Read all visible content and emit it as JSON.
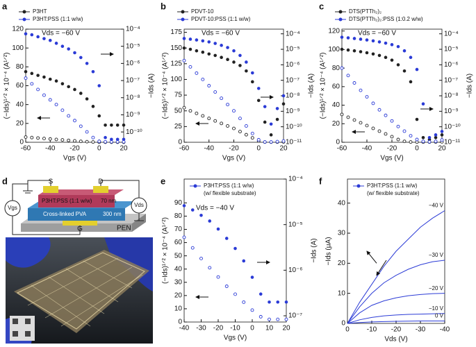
{
  "panel_labels": [
    "a",
    "b",
    "c",
    "d",
    "e",
    "f"
  ],
  "panel_d": {
    "source": "S",
    "drain": "D",
    "semiconductor": "P3HT:PSS (1:1 w/w)",
    "semiconductor_thickness": "70 nm",
    "dielectric": "Cross-linked PVA",
    "dielectric_thickness": "300 nm",
    "gate": "G",
    "substrate": "PEN",
    "vgs": "Vgs",
    "vds": "Vds"
  },
  "chart_data": [
    {
      "type": "transfer",
      "annotation": "Vds = −60 V",
      "xlabel": "Vgs (V)",
      "ylabel": "(−Ids)¹ᐟ² × 10⁻⁴ (A¹ᐟ²)",
      "y2label": "−Ids (A)",
      "y2log": true,
      "x": [
        -60,
        -55,
        -50,
        -45,
        -40,
        -35,
        -30,
        -25,
        -20,
        -15,
        -10,
        -5,
        0,
        5,
        10,
        15,
        20
      ],
      "xlim": [
        -60,
        20
      ],
      "xticks": [
        -60,
        -40,
        -20,
        0,
        20
      ],
      "ylim": [
        0,
        120
      ],
      "yticks": [
        0,
        20,
        40,
        60,
        80,
        100,
        120
      ],
      "y2lim": [
        2.5e-11,
        0.0001
      ],
      "y2ticks": [
        {
          "value": 0.0001,
          "label": "10⁻⁴"
        },
        {
          "value": 1e-05,
          "label": "10⁻⁵"
        },
        {
          "value": 1e-06,
          "label": "10⁻⁶"
        },
        {
          "value": 1e-07,
          "label": "10⁻⁷"
        },
        {
          "value": 1e-08,
          "label": "10⁻⁸"
        },
        {
          "value": 1e-09,
          "label": "10⁻⁹"
        },
        {
          "value": 1e-10,
          "label": "10⁻¹⁰"
        }
      ],
      "series": [
        {
          "name": "P3HT",
          "color": "#222222",
          "values": [
            5.5,
            5,
            4.5,
            4,
            3.5,
            3,
            2.5,
            2,
            1.5,
            1,
            0.6,
            0.3,
            0.1,
            0.1,
            0.1,
            0.1,
            0.1
          ],
          "values_y2": [
            3.3e-07,
            2.6e-07,
            2e-07,
            1.6e-07,
            1.2e-07,
            9.4e-08,
            6.5e-08,
            4.4e-08,
            3e-08,
            1.8e-08,
            8.5e-09,
            3.1e-09,
            8.7e-10,
            2.5e-10,
            2.5e-10,
            2.5e-10,
            2.5e-10
          ]
        },
        {
          "name": "P3HT:PSS (1:1 w/w)",
          "color": "#2b3bd6",
          "values": [
            68,
            62,
            56,
            50,
            45,
            40,
            34,
            28,
            23,
            17,
            11,
            5,
            1,
            0.5,
            0.5,
            0.5,
            0.5
          ],
          "values_y2": [
            5.3e-05,
            4.7e-05,
            3.6e-05,
            2.8e-05,
            2.2e-05,
            1.5e-05,
            1e-05,
            7e-06,
            4.2e-06,
            2.2e-06,
            1e-06,
            3.3e-07,
            5e-08,
            4.7e-11,
            3.7e-11,
            3.7e-11,
            3.7e-11
          ]
        }
      ]
    },
    {
      "type": "transfer",
      "annotation": "Vds = −60 V",
      "xlabel": "Vgs (V)",
      "ylabel": "(−Ids)¹ᐟ² × 10⁻⁴ (A¹ᐟ²)",
      "y2label": "−Ids (A)",
      "y2log": true,
      "x": [
        -60,
        -55,
        -50,
        -45,
        -40,
        -35,
        -30,
        -25,
        -20,
        -15,
        -10,
        -5,
        0,
        5,
        10,
        15,
        20
      ],
      "xlim": [
        -60,
        20
      ],
      "xticks": [
        -60,
        -40,
        -20,
        0,
        20
      ],
      "ylim": [
        0,
        180
      ],
      "yticks": [
        0,
        25,
        50,
        75,
        100,
        125,
        150,
        175
      ],
      "y2lim": [
        1e-11,
        0.0002
      ],
      "y2ticks": [
        {
          "value": 0.0001,
          "label": "10⁻⁴"
        },
        {
          "value": 1e-05,
          "label": "10⁻⁵"
        },
        {
          "value": 1e-06,
          "label": "10⁻⁶"
        },
        {
          "value": 1e-07,
          "label": "10⁻⁷"
        },
        {
          "value": 1e-08,
          "label": "10⁻⁸"
        },
        {
          "value": 1e-09,
          "label": "10⁻⁹"
        },
        {
          "value": 1e-10,
          "label": "10⁻¹⁰"
        },
        {
          "value": 1e-11,
          "label": "10⁻¹¹"
        }
      ],
      "series": [
        {
          "name": "PDVT-10",
          "color": "#222222",
          "values": [
            55,
            50,
            46,
            42,
            38,
            34,
            30,
            26,
            22,
            17,
            12,
            7,
            2,
            0.3,
            0.2,
            0.3,
            0.5
          ],
          "values_y2": [
            1.2e-05,
            1e-05,
            8e-06,
            6.5e-06,
            5e-06,
            4e-06,
            3e-06,
            2.2e-06,
            1.5e-06,
            9e-07,
            4e-07,
            8e-08,
            5e-09,
            2e-10,
            3e-11,
            3e-10,
            3e-09
          ]
        },
        {
          "name": "PDVT-10:PSS (1:1 w/w)",
          "color": "#2b3bd6",
          "values": [
            130,
            120,
            110,
            100,
            90,
            80,
            70,
            60,
            50,
            38,
            26,
            14,
            4,
            0.5,
            0.5,
            1,
            2
          ],
          "values_y2": [
            5e-05,
            4.5e-05,
            4e-05,
            3.5e-05,
            3e-05,
            2.4e-05,
            1.8e-05,
            1.3e-05,
            8e-06,
            4e-06,
            1.5e-06,
            3e-07,
            3e-08,
            2e-09,
            1.5e-10,
            1.5e-09,
            1e-08
          ]
        }
      ]
    },
    {
      "type": "transfer",
      "annotation": "Vds = −60 V",
      "xlabel": "Vgs (V)",
      "ylabel": "(−Ids)¹ᐟ² × 10⁻⁴ (A¹ᐟ²)",
      "y2label": "−Ids (A)",
      "y2log": true,
      "x": [
        -60,
        -55,
        -50,
        -45,
        -40,
        -35,
        -30,
        -25,
        -20,
        -15,
        -10,
        -5,
        0,
        5,
        10,
        15,
        20
      ],
      "xlim": [
        -60,
        20
      ],
      "xticks": [
        -60,
        -40,
        -20,
        0,
        20
      ],
      "ylim": [
        0,
        122
      ],
      "yticks": [
        0,
        20,
        40,
        60,
        80,
        100,
        120
      ],
      "y2lim": [
        1e-11,
        0.0002
      ],
      "y2ticks": [
        {
          "value": 0.0001,
          "label": "10⁻⁴"
        },
        {
          "value": 1e-05,
          "label": "10⁻⁵"
        },
        {
          "value": 1e-06,
          "label": "10⁻⁶"
        },
        {
          "value": 1e-07,
          "label": "10⁻⁷"
        },
        {
          "value": 1e-08,
          "label": "10⁻⁸"
        },
        {
          "value": 1e-09,
          "label": "10⁻⁹"
        },
        {
          "value": 1e-10,
          "label": "10⁻¹⁰"
        },
        {
          "value": 1e-11,
          "label": "10⁻¹¹"
        }
      ],
      "series": [
        {
          "name": "DTS(PTTh₂)₂",
          "color": "#222222",
          "values": [
            30,
            27,
            24,
            21,
            18,
            15,
            12,
            9,
            6,
            3,
            1,
            0.3,
            0.2,
            0.2,
            0.2,
            0.3,
            0.5
          ],
          "values_y2": [
            1e-05,
            9e-06,
            8e-06,
            7e-06,
            6e-06,
            5e-06,
            4e-06,
            3e-06,
            2e-06,
            1e-06,
            4e-07,
            8e-08,
            3e-10,
            2e-11,
            1.5e-11,
            2e-11,
            3e-11
          ]
        },
        {
          "name": "DTS(PTTh₂)₂:PSS (1:0.2 w/w)",
          "color": "#2b3bd6",
          "values": [
            80,
            72,
            64,
            56,
            49,
            42,
            35,
            29,
            23,
            17,
            12,
            7,
            3,
            1,
            0.5,
            1,
            2.5
          ],
          "values_y2": [
            6e-05,
            5.5e-05,
            5e-05,
            4.5e-05,
            4e-05,
            3.5e-05,
            3e-05,
            2.5e-05,
            2e-05,
            1.5e-05,
            8e-06,
            3e-06,
            5e-07,
            3e-09,
            2e-11,
            3e-11,
            5e-11
          ]
        }
      ]
    },
    {
      "type": "transfer",
      "annotation": "Vds = −40 V",
      "legend_note": "(w/ flexible substrate)",
      "xlabel": "Vgs (V)",
      "ylabel": "(−Ids)¹ᐟ² × 10⁻⁴ (A¹ᐟ²)",
      "y2label": "−Ids (A)",
      "y2log": true,
      "x": [
        -40,
        -35,
        -30,
        -25,
        -20,
        -15,
        -10,
        -5,
        0,
        5,
        10,
        15,
        20
      ],
      "xlim": [
        -40,
        20
      ],
      "xticks": [
        -40,
        -30,
        -20,
        -10,
        0,
        10,
        20
      ],
      "ylim": [
        0,
        108
      ],
      "yticks": [
        0,
        10,
        20,
        30,
        40,
        50,
        60,
        70,
        80,
        90
      ],
      "y2lim": [
        7.3e-08,
        0.0001
      ],
      "y2ticks": [
        {
          "value": 0.0001,
          "label": "10⁻⁴"
        },
        {
          "value": 1e-05,
          "label": "10⁻⁵"
        },
        {
          "value": 1e-06,
          "label": "10⁻⁶"
        },
        {
          "value": 1e-07,
          "label": "10⁻⁷"
        }
      ],
      "series": [
        {
          "name": "P3HT:PSS (1:1 w/w)",
          "color": "#2b3bd6",
          "values": [
            64,
            56,
            48,
            41,
            34,
            27,
            21,
            15,
            9,
            4,
            2,
            2,
            2
          ],
          "values_y2": [
            2.6e-05,
            2.1e-05,
            1.6e-05,
            1.2e-05,
            8e-06,
            5e-06,
            3e-06,
            1.6e-06,
            7e-07,
            3e-07,
            2e-07,
            2e-07,
            2e-07
          ]
        }
      ]
    },
    {
      "type": "line",
      "legend": "P3HT:PSS (1:1 w/w)",
      "legend_note": "(w/ flexible substrate)",
      "color": "#2b3bd6",
      "xlabel": "Vds (V)",
      "ylabel": "−Ids (μA)",
      "x": [
        0,
        -5,
        -10,
        -15,
        -20,
        -25,
        -30,
        -35,
        -40
      ],
      "xlim": [
        0,
        -40
      ],
      "xticks": [
        0,
        -10,
        -20,
        -30,
        -40
      ],
      "ylim": [
        0,
        48
      ],
      "yticks": [
        0,
        10,
        20,
        30,
        40
      ],
      "series": [
        {
          "name": "−40 V",
          "values": [
            0,
            7,
            13,
            19,
            24,
            28,
            32,
            35,
            37.5
          ]
        },
        {
          "name": "−30 V",
          "values": [
            0,
            5.5,
            10,
            13.5,
            16,
            18,
            19.5,
            20.5,
            21
          ]
        },
        {
          "name": "−20 V",
          "values": [
            0,
            3.5,
            6,
            7.5,
            8.5,
            9.2,
            9.6,
            9.9,
            10
          ]
        },
        {
          "name": "−10 V",
          "values": [
            0,
            1.2,
            2,
            2.5,
            2.8,
            3,
            3.1,
            3.2,
            3.3
          ]
        },
        {
          "name": "0 V",
          "values": [
            0,
            0.3,
            0.5,
            0.6,
            0.7,
            0.75,
            0.8,
            0.8,
            0.8
          ]
        }
      ]
    }
  ]
}
